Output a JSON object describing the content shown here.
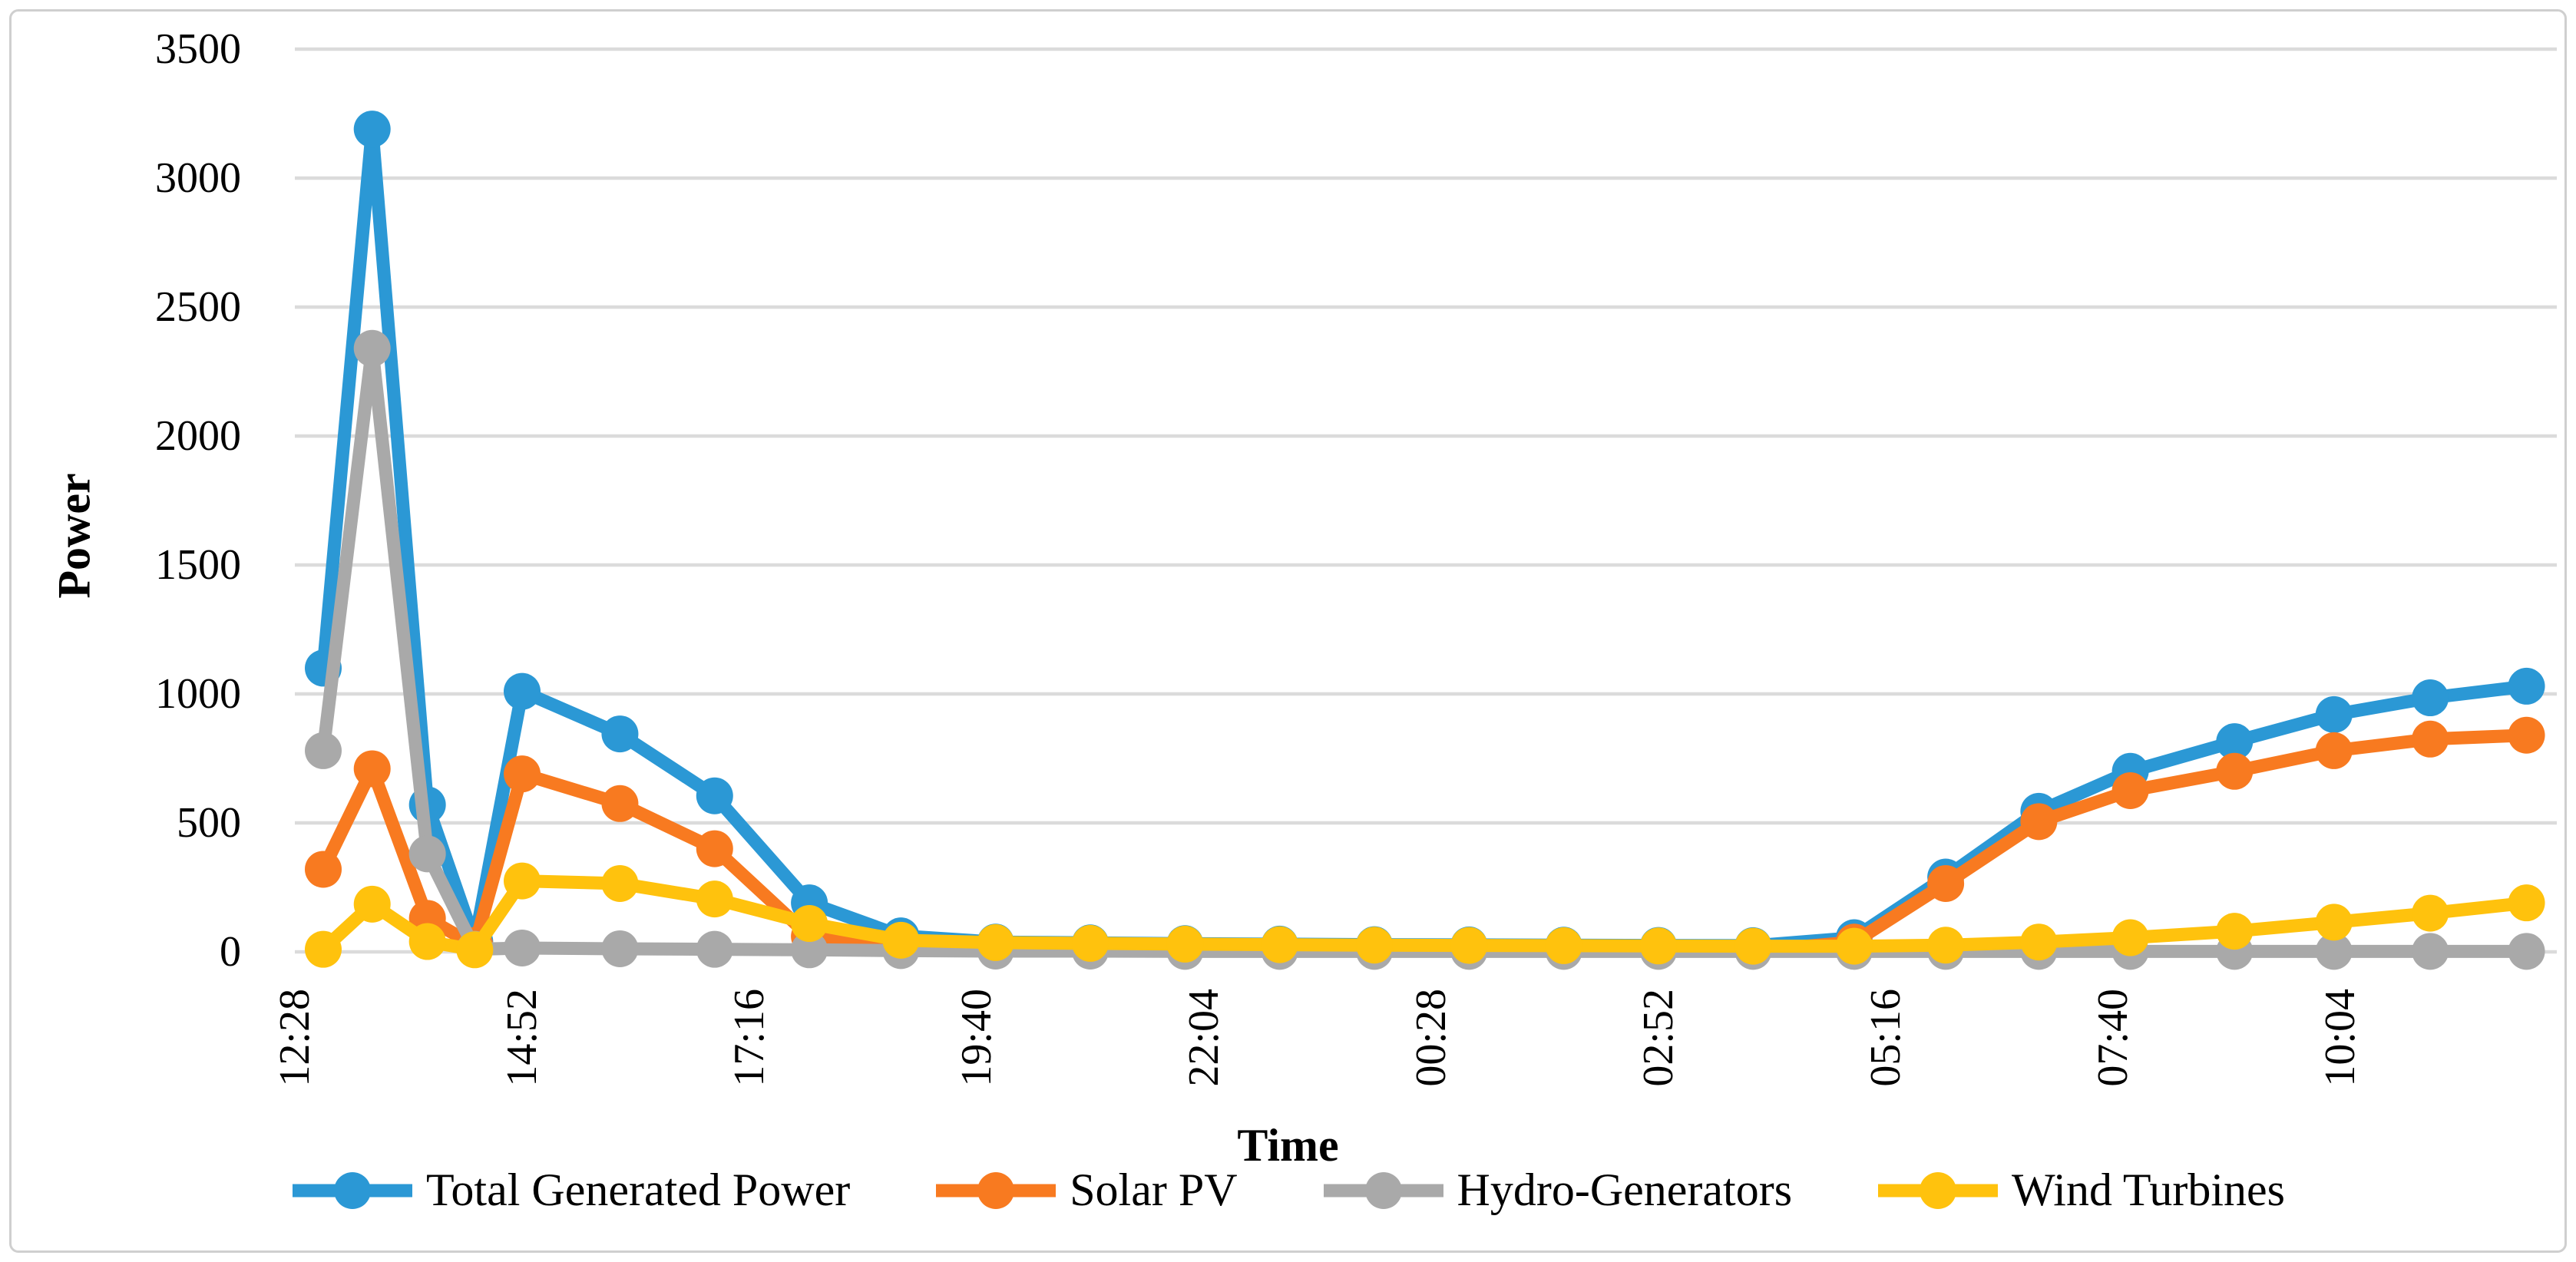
{
  "figure": {
    "border_color": "#cfcfcf",
    "background": "#ffffff",
    "gridline_color": "#dbdbdb",
    "text_color": "#000000"
  },
  "chart_data": {
    "type": "line",
    "title": "",
    "xlabel": "Time",
    "ylabel": "Power",
    "ylim": [
      0,
      3500
    ],
    "ytick_step": 500,
    "y_tick_labels": [
      "0",
      "500",
      "1000",
      "1500",
      "2000",
      "2500",
      "3000",
      "3500"
    ],
    "grid": true,
    "legend_position": "bottom",
    "x_tick_labels": [
      "12:28",
      "14:52",
      "17:16",
      "19:40",
      "22:04",
      "00:28",
      "02:52",
      "05:16",
      "07:40",
      "10:04"
    ],
    "x_tick_interval_minutes": 144,
    "x_domain_minutes": [
      0,
      1433
    ],
    "x_minutes": [
      18,
      49,
      84,
      114,
      144,
      206,
      266,
      326,
      384,
      444,
      504,
      564,
      624,
      684,
      744,
      804,
      864,
      924,
      988,
      1046,
      1105,
      1163,
      1229,
      1292,
      1353,
      1414
    ],
    "series": [
      {
        "name": "Total Generated Power",
        "color": "#2b98d5",
        "values": [
          1100,
          3190,
          570,
          40,
          1010,
          845,
          605,
          190,
          62,
          38,
          35,
          32,
          30,
          28,
          27,
          26,
          25,
          24,
          55,
          290,
          545,
          700,
          815,
          920,
          985,
          1030
        ]
      },
      {
        "name": "Solar PV",
        "color": "#f87a20",
        "values": [
          320,
          710,
          130,
          25,
          690,
          575,
          400,
          60,
          20,
          10,
          9,
          8,
          7,
          6,
          5,
          5,
          4,
          4,
          38,
          265,
          505,
          625,
          700,
          780,
          825,
          840
        ]
      },
      {
        "name": "Hydro-Generators",
        "color": "#a9a9a9",
        "values": [
          780,
          2340,
          380,
          10,
          15,
          12,
          10,
          8,
          5,
          3,
          3,
          2,
          2,
          2,
          2,
          2,
          2,
          2,
          2,
          2,
          2,
          2,
          2,
          2,
          2,
          2
        ]
      },
      {
        "name": "Wind Turbines",
        "color": "#ffc20d",
        "values": [
          10,
          185,
          40,
          8,
          275,
          265,
          205,
          110,
          45,
          36,
          33,
          30,
          28,
          26,
          25,
          24,
          23,
          22,
          22,
          26,
          38,
          55,
          80,
          115,
          150,
          190
        ]
      }
    ]
  },
  "legend": {
    "items": [
      "Total Generated Power",
      "Solar PV",
      "Hydro-Generators",
      "Wind Turbines"
    ]
  }
}
